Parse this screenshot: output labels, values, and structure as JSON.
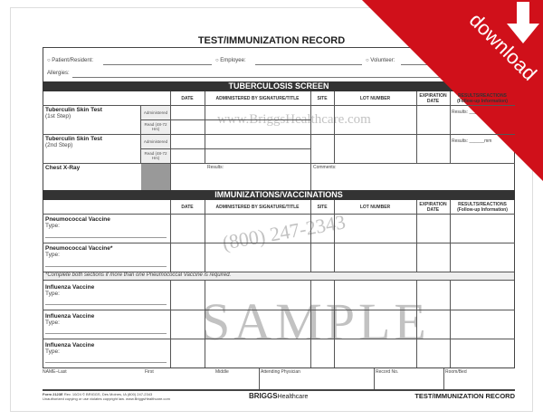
{
  "title": "TEST/IMMUNIZATION RECORD",
  "header": {
    "patient": "Patient/Resident:",
    "employee": "Employee:",
    "volunteer": "Volunteer:",
    "allergies": "Allergies:",
    "nka": "N"
  },
  "tb": {
    "heading": "TUBERCULOSIS SCREEN",
    "columns": [
      "DATE",
      "ADMINISTERED BY SIGNATURE/TITLE",
      "SITE",
      "LOT NUMBER",
      "EXPIRATION DATE",
      "RESULTS/REACTIONS (Follow-up Information)"
    ],
    "rows": [
      {
        "label": "Tuberculin Skin Test",
        "sub": "(1st Step)"
      },
      {
        "label": "Tuberculin Skin Test",
        "sub": "(2nd Step)"
      },
      {
        "label": "Chest X-Ray",
        "sub": ""
      }
    ],
    "administered": "Administered",
    "read": "Read (48-72 Hrs)",
    "results": "Results: ______mm",
    "xray_results": "Results:",
    "xray_comments": "Comments:"
  },
  "imm": {
    "heading": "IMMUNIZATIONS/VACCINATIONS",
    "columns": [
      "DATE",
      "ADMINISTERED BY SIGNATURE/TITLE",
      "SITE",
      "LOT NUMBER",
      "EXPIRATION DATE",
      "RESULTS/REACTIONS (Follow-up Information)"
    ],
    "rows": [
      {
        "label": "Pneumococcal Vaccine",
        "type": "Type:"
      },
      {
        "label": "Pneumococcal Vaccine*",
        "type": "Type:"
      },
      {
        "label": "Influenza Vaccine",
        "type": "Type:"
      },
      {
        "label": "Influenza Vaccine",
        "type": "Type:"
      },
      {
        "label": "Influenza Vaccine",
        "type": "Type:"
      }
    ],
    "note": "*Complete both sections if more than one Pneumococcal Vaccine is required."
  },
  "footer": {
    "fields": [
      "NAME–Last",
      "First",
      "Middle",
      "Attending Physician",
      "Record No.",
      "Room/Bed"
    ],
    "form": "Form 2123E",
    "form_info": "Rev. 10/24 © BRIGGS, Des Moines, IA (800) 247-2343",
    "copy": "Unauthorized copying or use violates copyright law. www.BriggsHealthcare.com",
    "brand_bold": "BRIGGS",
    "brand_light": "Healthcare",
    "doc_title": "TEST/IMMUNIZATION RECORD"
  },
  "watermark": {
    "site": "www.BriggsHealthcare.com",
    "sample": "SAMPLE",
    "phone": "(800) 247-2343"
  },
  "ribbon": {
    "label": "download",
    "color": "#d0101a"
  }
}
